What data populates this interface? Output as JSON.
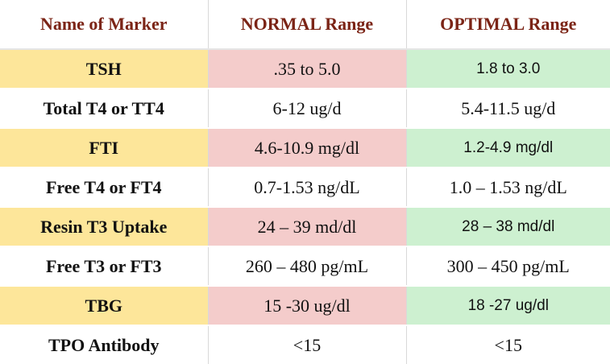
{
  "table": {
    "header": [
      "Name of Marker",
      "NORMAL Range",
      "OPTIMAL Range"
    ],
    "rows": [
      [
        "TSH",
        ".35 to 5.0",
        "1.8 to 3.0"
      ],
      [
        "Total T4 or TT4",
        "6-12 ug/d",
        "5.4-11.5 ug/d"
      ],
      [
        "FTI",
        "4.6-10.9 mg/dl",
        "1.2-4.9 mg/dl"
      ],
      [
        "Free T4 or FT4",
        "0.7-1.53 ng/dL",
        "1.0 – 1.53 ng/dL"
      ],
      [
        "Resin T3 Uptake",
        "24 – 39 md/dl",
        "28 – 38 md/dl"
      ],
      [
        "Free T3 or FT3",
        "260 – 480 pg/mL",
        "300 – 450 pg/mL"
      ],
      [
        "TBG",
        "15 -30 ug/dl",
        "18 -27 ug/dl"
      ],
      [
        "TPO Antibody",
        "<15",
        "<15"
      ]
    ]
  }
}
